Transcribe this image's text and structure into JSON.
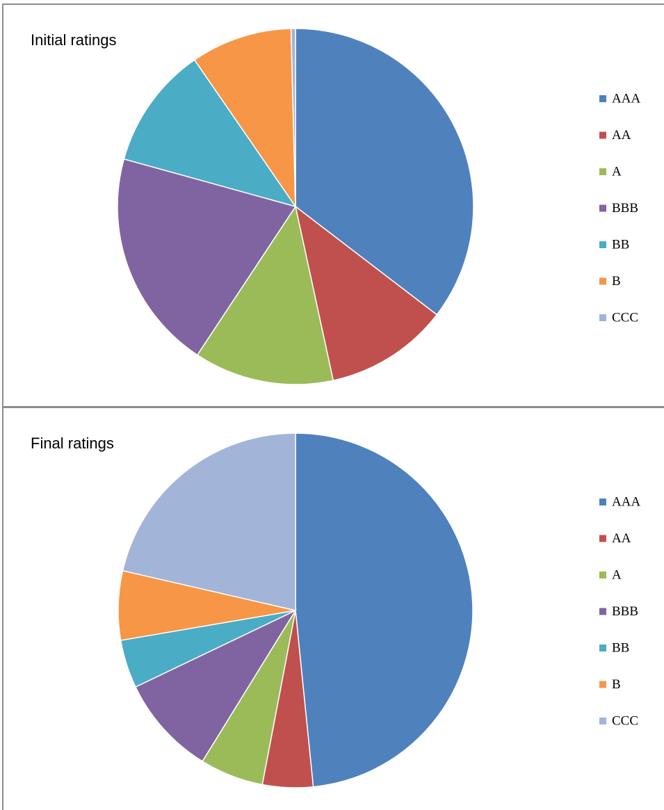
{
  "chart_data": [
    {
      "type": "pie",
      "title": "Initial ratings",
      "categories": [
        "AAA",
        "AA",
        "A",
        "BBB",
        "BB",
        "B",
        "CCC"
      ],
      "values": [
        35.4,
        11.2,
        12.7,
        20,
        11.1,
        9.2,
        0.4
      ],
      "colors": [
        "#4f81bd",
        "#c0504d",
        "#9bbb59",
        "#8064a2",
        "#4bacc6",
        "#f79646",
        "#a2b4d8"
      ]
    },
    {
      "type": "pie",
      "title": "Final ratings",
      "categories": [
        "AAA",
        "AA",
        "A",
        "BBB",
        "BB",
        "B",
        "CCC"
      ],
      "values": [
        48.4,
        4.6,
        5.8,
        9.1,
        4.4,
        6.3,
        21.4
      ],
      "colors": [
        "#4f81bd",
        "#c0504d",
        "#9bbb59",
        "#8064a2",
        "#4bacc6",
        "#f79646",
        "#a2b4d8"
      ]
    }
  ]
}
